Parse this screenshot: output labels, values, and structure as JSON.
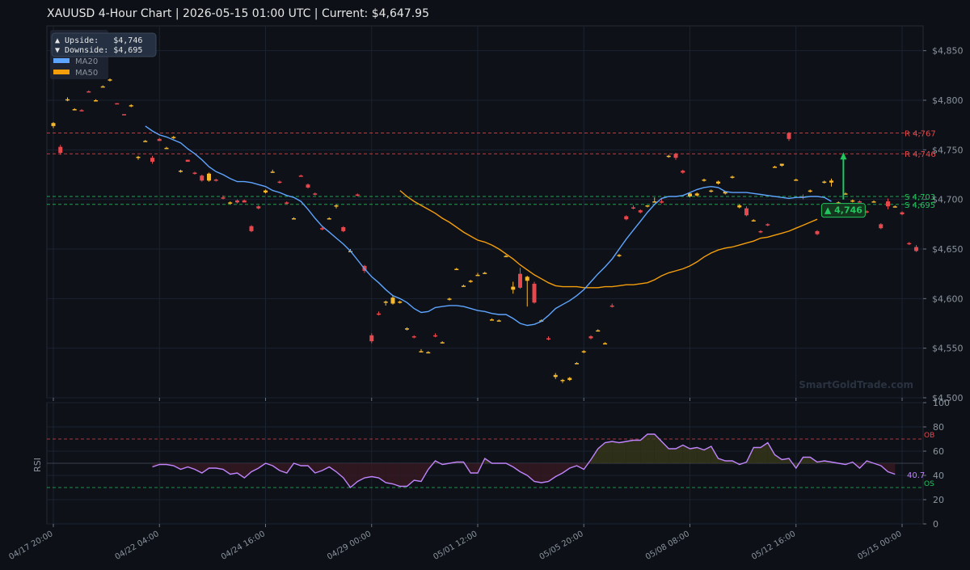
{
  "title": "XAUUSD  4-Hour Chart  |  2026-05-15 01:00 UTC  |  Current: $4,647.95",
  "watermark": "SmartGoldTrade.com",
  "colors": {
    "background": "#0d1117",
    "panel": "#0e1118",
    "grid": "#1b2230",
    "up": "#f5b82e",
    "down": "#e5484d",
    "ma20": "#5ea5ff",
    "ma50": "#f59e0b",
    "resistance": "#e5484d",
    "support": "#22c55e",
    "rsi": "#c084fc"
  },
  "legend": {
    "upside": "▲ Upside:   $4,746",
    "downside": "▼ Downside: $4,695",
    "ma20": "MA20",
    "ma50": "MA50"
  },
  "target_label": "▲ 4,746",
  "rsi_label": "RSI",
  "rsi_ob": "OB",
  "rsi_os": "OS",
  "rsi_current": "40.7",
  "chart_data": {
    "type": "candlestick",
    "title": "XAUUSD  4-Hour Chart  |  2026-05-15 01:00 UTC  |  Current: $4,647.95",
    "ylim": [
      4500,
      4875
    ],
    "yticks": [
      4500,
      4550,
      4600,
      4650,
      4700,
      4750,
      4800,
      4850
    ],
    "ytick_labels": [
      "$4,500",
      "$4,550",
      "$4,600",
      "$4,650",
      "$4,700",
      "$4,750",
      "$4,800",
      "$4,850"
    ],
    "xtick_labels": [
      "04/17 20:00",
      "04/22 04:00",
      "04/24 16:00",
      "04/29 00:00",
      "05/01 12:00",
      "05/05 20:00",
      "05/08 08:00",
      "05/12 16:00",
      "05/15 00:00"
    ],
    "xtick_index": [
      0,
      15,
      30,
      45,
      60,
      75,
      90,
      105,
      120
    ],
    "levels": [
      {
        "kind": "resistance",
        "value": 4767,
        "label": "R 4,767"
      },
      {
        "kind": "resistance",
        "value": 4746,
        "label": "R 4,746"
      },
      {
        "kind": "support",
        "value": 4703,
        "label": "S 4,703"
      },
      {
        "kind": "support",
        "value": 4695,
        "label": "S 4,695"
      }
    ],
    "target": 4746,
    "candles": [
      [
        4774,
        4778,
        4772,
        4777
      ],
      [
        4753,
        4755,
        4745,
        4747
      ],
      [
        4801,
        4803,
        4799,
        4801
      ],
      [
        4791,
        4792,
        4790,
        4791
      ],
      [
        4790,
        4791,
        4789,
        4789
      ],
      [
        4809,
        4810,
        4808,
        4808
      ],
      [
        4800,
        4801,
        4799,
        4800
      ],
      [
        4814,
        4815,
        4813,
        4814
      ],
      [
        4820,
        4822,
        4819,
        4821
      ],
      [
        4797,
        4797,
        4796,
        4796
      ],
      [
        4786,
        4786,
        4785,
        4785
      ],
      [
        4794,
        4796,
        4793,
        4795
      ],
      [
        4742,
        4744,
        4740,
        4743
      ],
      [
        4759,
        4760,
        4758,
        4759
      ],
      [
        4742,
        4744,
        4736,
        4738
      ],
      [
        4761,
        4762,
        4759,
        4759
      ],
      [
        4752,
        4753,
        4751,
        4752
      ],
      [
        4762,
        4764,
        4761,
        4763
      ],
      [
        4728,
        4730,
        4727,
        4729
      ],
      [
        4740,
        4740,
        4738,
        4738
      ],
      [
        4727,
        4728,
        4725,
        4726
      ],
      [
        4724,
        4725,
        4718,
        4719
      ],
      [
        4719,
        4727,
        4718,
        4726
      ],
      [
        4720,
        4721,
        4718,
        4719
      ],
      [
        4702,
        4704,
        4700,
        4701
      ],
      [
        4696,
        4698,
        4695,
        4697
      ],
      [
        4699,
        4700,
        4696,
        4697
      ],
      [
        4699,
        4700,
        4697,
        4697
      ],
      [
        4673,
        4674,
        4667,
        4668
      ],
      [
        4693,
        4694,
        4690,
        4691
      ],
      [
        4707,
        4710,
        4706,
        4709
      ],
      [
        4728,
        4730,
        4727,
        4728
      ],
      [
        4718,
        4719,
        4716,
        4717
      ],
      [
        4697,
        4698,
        4695,
        4696
      ],
      [
        4681,
        4682,
        4680,
        4681
      ],
      [
        4724,
        4725,
        4723,
        4723
      ],
      [
        4715,
        4716,
        4711,
        4712
      ],
      [
        4706,
        4707,
        4704,
        4705
      ],
      [
        4671,
        4672,
        4669,
        4670
      ],
      [
        4681,
        4682,
        4680,
        4681
      ],
      [
        4693,
        4695,
        4691,
        4694
      ],
      [
        4672,
        4673,
        4667,
        4668
      ],
      [
        4648,
        4650,
        4647,
        4648
      ],
      [
        4705,
        4706,
        4703,
        4704
      ],
      [
        4633,
        4634,
        4626,
        4628
      ],
      [
        4563,
        4565,
        4555,
        4557
      ],
      [
        4585,
        4587,
        4583,
        4584
      ],
      [
        4596,
        4598,
        4593,
        4597
      ],
      [
        4595,
        4603,
        4594,
        4601
      ],
      [
        4596,
        4598,
        4595,
        4597
      ],
      [
        4569,
        4571,
        4568,
        4570
      ],
      [
        4562,
        4563,
        4560,
        4561
      ],
      [
        4547,
        4549,
        4546,
        4547
      ],
      [
        4546,
        4547,
        4545,
        4546
      ],
      [
        4563,
        4565,
        4561,
        4562
      ],
      [
        4556,
        4557,
        4555,
        4556
      ],
      [
        4599,
        4601,
        4598,
        4600
      ],
      [
        4630,
        4631,
        4629,
        4630
      ],
      [
        4613,
        4614,
        4612,
        4613
      ],
      [
        4617,
        4619,
        4616,
        4618
      ],
      [
        4624,
        4626,
        4623,
        4624
      ],
      [
        4626,
        4627,
        4625,
        4626
      ],
      [
        4579,
        4580,
        4578,
        4579
      ],
      [
        4578,
        4579,
        4577,
        4578
      ],
      [
        4643,
        4644,
        4642,
        4643
      ],
      [
        4609,
        4617,
        4605,
        4612
      ],
      [
        4625,
        4631,
        4610,
        4611
      ],
      [
        4618,
        4623,
        4592,
        4622
      ],
      [
        4615,
        4617,
        4595,
        4596
      ],
      [
        4578,
        4579,
        4577,
        4578
      ],
      [
        4560,
        4562,
        4558,
        4559
      ],
      [
        4521,
        4525,
        4519,
        4523
      ],
      [
        4517,
        4519,
        4515,
        4518
      ],
      [
        4518,
        4521,
        4517,
        4520
      ],
      [
        4535,
        4536,
        4534,
        4535
      ],
      [
        4546,
        4548,
        4545,
        4547
      ],
      [
        4562,
        4563,
        4559,
        4560
      ],
      [
        4568,
        4569,
        4567,
        4568
      ],
      [
        4555,
        4556,
        4554,
        4555
      ],
      [
        4593,
        4595,
        4591,
        4592
      ],
      [
        4643,
        4645,
        4642,
        4644
      ],
      [
        4683,
        4684,
        4679,
        4680
      ],
      [
        4692,
        4694,
        4690,
        4691
      ],
      [
        4689,
        4690,
        4686,
        4687
      ],
      [
        4693,
        4694,
        4692,
        4694
      ],
      [
        4698,
        4702,
        4697,
        4698
      ],
      [
        4698,
        4701,
        4696,
        4697
      ],
      [
        4743,
        4745,
        4742,
        4744
      ],
      [
        4746,
        4747,
        4740,
        4742
      ],
      [
        4729,
        4730,
        4726,
        4727
      ],
      [
        4703,
        4707,
        4702,
        4706
      ],
      [
        4704,
        4707,
        4703,
        4706
      ],
      [
        4719,
        4721,
        4718,
        4720
      ],
      [
        4708,
        4710,
        4707,
        4709
      ],
      [
        4716,
        4719,
        4715,
        4718
      ],
      [
        4706,
        4708,
        4705,
        4708
      ],
      [
        4722,
        4724,
        4721,
        4723
      ],
      [
        4692,
        4695,
        4691,
        4694
      ],
      [
        4691,
        4693,
        4683,
        4684
      ],
      [
        4679,
        4680,
        4678,
        4679
      ],
      [
        4668,
        4669,
        4666,
        4667
      ],
      [
        4675,
        4676,
        4673,
        4674
      ],
      [
        4733,
        4734,
        4732,
        4733
      ],
      [
        4734,
        4736,
        4733,
        4736
      ],
      [
        4767,
        4768,
        4759,
        4761
      ],
      [
        4720,
        4721,
        4719,
        4720
      ],
      [
        4703,
        4705,
        4700,
        4702
      ],
      [
        4708,
        4710,
        4707,
        4709
      ],
      [
        4668,
        4669,
        4664,
        4665
      ],
      [
        4717,
        4719,
        4716,
        4718
      ],
      [
        4717,
        4721,
        4713,
        4719
      ],
      [
        4697,
        4698,
        4696,
        4697
      ],
      [
        4706,
        4707,
        4705,
        4706
      ],
      [
        4699,
        4700,
        4697,
        4699
      ],
      [
        4698,
        4699,
        4697,
        4697
      ],
      [
        4688,
        4689,
        4686,
        4687
      ],
      [
        4698,
        4699,
        4697,
        4698
      ],
      [
        4675,
        4676,
        4670,
        4671
      ],
      [
        4698,
        4701,
        4690,
        4693
      ],
      [
        4693,
        4694,
        4692,
        4693
      ],
      [
        4687,
        4688,
        4684,
        4685
      ],
      [
        4656,
        4657,
        4654,
        4655
      ],
      [
        4652,
        4654,
        4647,
        4648
      ]
    ],
    "ma20": [
      [
        13,
        4774
      ],
      [
        14,
        4769
      ],
      [
        15,
        4765
      ],
      [
        16,
        4763
      ],
      [
        17,
        4760
      ],
      [
        18,
        4757
      ],
      [
        19,
        4751
      ],
      [
        20,
        4746
      ],
      [
        21,
        4740
      ],
      [
        22,
        4733
      ],
      [
        23,
        4728
      ],
      [
        24,
        4725
      ],
      [
        25,
        4721
      ],
      [
        26,
        4718
      ],
      [
        27,
        4718
      ],
      [
        28,
        4717
      ],
      [
        29,
        4715
      ],
      [
        30,
        4713
      ],
      [
        31,
        4709
      ],
      [
        32,
        4707
      ],
      [
        33,
        4704
      ],
      [
        34,
        4702
      ],
      [
        35,
        4698
      ],
      [
        36,
        4690
      ],
      [
        37,
        4681
      ],
      [
        38,
        4673
      ],
      [
        39,
        4667
      ],
      [
        40,
        4661
      ],
      [
        41,
        4655
      ],
      [
        42,
        4648
      ],
      [
        43,
        4639
      ],
      [
        44,
        4630
      ],
      [
        45,
        4622
      ],
      [
        46,
        4616
      ],
      [
        47,
        4609
      ],
      [
        48,
        4603
      ],
      [
        49,
        4600
      ],
      [
        50,
        4596
      ],
      [
        51,
        4590
      ],
      [
        52,
        4586
      ],
      [
        53,
        4587
      ],
      [
        54,
        4591
      ],
      [
        55,
        4592
      ],
      [
        56,
        4593
      ],
      [
        57,
        4593
      ],
      [
        58,
        4592
      ],
      [
        59,
        4590
      ],
      [
        60,
        4588
      ],
      [
        61,
        4587
      ],
      [
        62,
        4585
      ],
      [
        63,
        4584
      ],
      [
        64,
        4584
      ],
      [
        65,
        4580
      ],
      [
        66,
        4575
      ],
      [
        67,
        4573
      ],
      [
        68,
        4574
      ],
      [
        69,
        4577
      ],
      [
        70,
        4583
      ],
      [
        71,
        4590
      ],
      [
        72,
        4594
      ],
      [
        73,
        4598
      ],
      [
        74,
        4603
      ],
      [
        75,
        4609
      ],
      [
        76,
        4617
      ],
      [
        77,
        4625
      ],
      [
        78,
        4632
      ],
      [
        79,
        4640
      ],
      [
        80,
        4650
      ],
      [
        81,
        4660
      ],
      [
        82,
        4669
      ],
      [
        83,
        4678
      ],
      [
        84,
        4687
      ],
      [
        85,
        4695
      ],
      [
        86,
        4701
      ],
      [
        87,
        4703
      ],
      [
        88,
        4703
      ],
      [
        89,
        4704
      ],
      [
        90,
        4707
      ],
      [
        91,
        4710
      ],
      [
        92,
        4712
      ],
      [
        93,
        4713
      ],
      [
        94,
        4712
      ],
      [
        95,
        4708
      ],
      [
        96,
        4707
      ],
      [
        97,
        4707
      ],
      [
        98,
        4707
      ],
      [
        99,
        4706
      ],
      [
        100,
        4705
      ],
      [
        101,
        4704
      ],
      [
        102,
        4703
      ],
      [
        103,
        4702
      ],
      [
        104,
        4701
      ],
      [
        105,
        4702
      ],
      [
        106,
        4702
      ],
      [
        107,
        4703
      ],
      [
        108,
        4703
      ],
      [
        109,
        4702
      ],
      [
        110,
        4698
      ]
    ],
    "ma50": [
      [
        49,
        4709
      ],
      [
        50,
        4703
      ],
      [
        51,
        4698
      ],
      [
        52,
        4694
      ],
      [
        53,
        4690
      ],
      [
        54,
        4686
      ],
      [
        55,
        4681
      ],
      [
        56,
        4677
      ],
      [
        57,
        4672
      ],
      [
        58,
        4667
      ],
      [
        59,
        4663
      ],
      [
        60,
        4659
      ],
      [
        61,
        4657
      ],
      [
        62,
        4654
      ],
      [
        63,
        4650
      ],
      [
        64,
        4645
      ],
      [
        65,
        4640
      ],
      [
        66,
        4634
      ],
      [
        67,
        4629
      ],
      [
        68,
        4624
      ],
      [
        69,
        4620
      ],
      [
        70,
        4616
      ],
      [
        71,
        4613
      ],
      [
        72,
        4612
      ],
      [
        73,
        4612
      ],
      [
        74,
        4612
      ],
      [
        75,
        4611
      ],
      [
        76,
        4611
      ],
      [
        77,
        4611
      ],
      [
        78,
        4612
      ],
      [
        79,
        4612
      ],
      [
        80,
        4613
      ],
      [
        81,
        4614
      ],
      [
        82,
        4614
      ],
      [
        83,
        4615
      ],
      [
        84,
        4616
      ],
      [
        85,
        4619
      ],
      [
        86,
        4623
      ],
      [
        87,
        4626
      ],
      [
        88,
        4628
      ],
      [
        89,
        4630
      ],
      [
        90,
        4633
      ],
      [
        91,
        4637
      ],
      [
        92,
        4642
      ],
      [
        93,
        4646
      ],
      [
        94,
        4649
      ],
      [
        95,
        4651
      ],
      [
        96,
        4652
      ],
      [
        97,
        4654
      ],
      [
        98,
        4656
      ],
      [
        99,
        4658
      ],
      [
        100,
        4661
      ],
      [
        101,
        4662
      ],
      [
        102,
        4664
      ],
      [
        103,
        4666
      ],
      [
        104,
        4668
      ],
      [
        105,
        4671
      ],
      [
        106,
        4674
      ],
      [
        107,
        4677
      ],
      [
        108,
        4680
      ]
    ],
    "rsi": {
      "ylim": [
        0,
        100
      ],
      "yticks": [
        0,
        20,
        40,
        60,
        80,
        100
      ],
      "ob": 70,
      "os": 30,
      "mid": 50,
      "start_index": 14,
      "values": [
        47,
        49,
        49,
        48,
        45,
        47,
        45,
        42,
        46,
        46,
        45,
        41,
        42,
        38,
        43,
        46,
        50,
        48,
        44,
        42,
        50,
        48,
        48,
        42,
        44,
        47,
        43,
        38,
        30,
        35,
        38,
        39,
        38,
        34,
        33,
        31,
        31,
        36,
        35,
        45,
        52,
        49,
        50,
        51,
        51,
        42,
        42,
        54,
        50,
        50,
        50,
        47,
        43,
        40,
        35,
        34,
        35,
        39,
        42,
        46,
        48,
        45,
        53,
        62,
        67,
        68,
        67,
        68,
        69,
        69,
        74,
        74,
        68,
        62,
        62,
        65,
        62,
        63,
        61,
        64,
        54,
        52,
        52,
        49,
        51,
        63,
        63,
        67,
        57,
        53,
        54,
        46,
        55,
        55,
        51,
        52,
        51,
        50,
        49,
        51,
        46,
        52,
        50,
        48,
        43,
        41
      ]
    }
  }
}
